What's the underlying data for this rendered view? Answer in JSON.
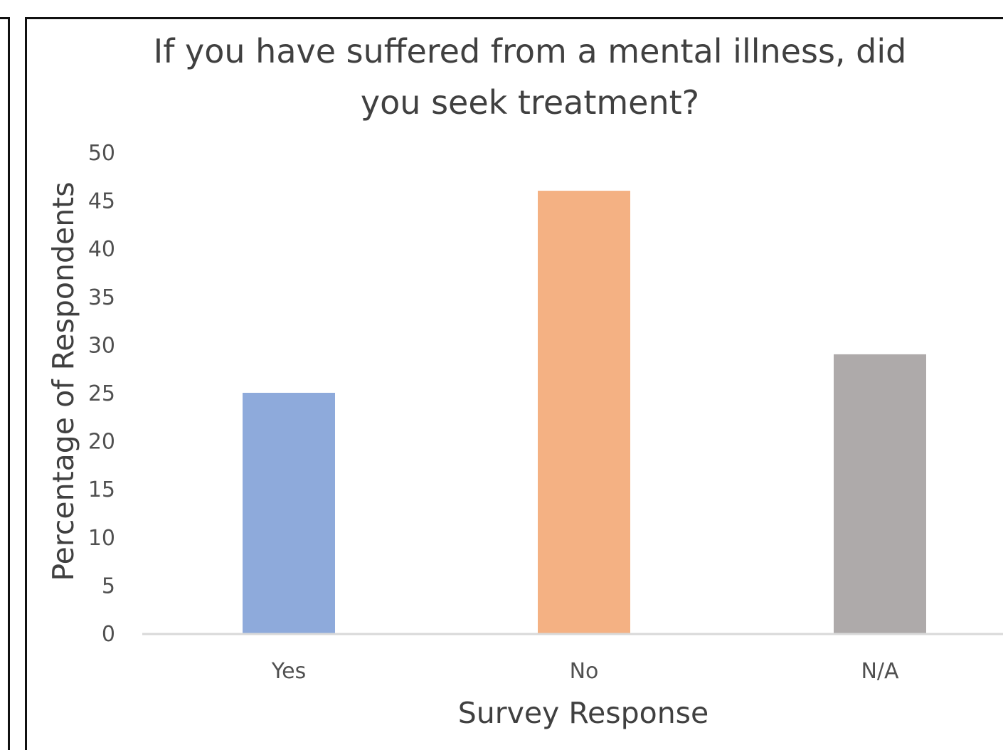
{
  "chart_data": {
    "type": "bar",
    "title_lines": [
      "If you have suffered from a mental illness, did",
      "you seek treatment?"
    ],
    "xlabel": "Survey Response",
    "ylabel": "Percentage of Respondents",
    "categories": [
      "Yes",
      "No",
      "N/A"
    ],
    "values": [
      25,
      46,
      29
    ],
    "colors": [
      "#8eaadb",
      "#f4b183",
      "#aeaaaa"
    ],
    "ylim": [
      0,
      50
    ],
    "yticks": [
      "0",
      "5",
      "10",
      "15",
      "20",
      "25",
      "30",
      "35",
      "40",
      "45",
      "50"
    ],
    "grid": false,
    "legend": "none"
  },
  "colors": {
    "axis_line": "#d9d9d9",
    "text": "#404040",
    "frame": "#111111"
  }
}
